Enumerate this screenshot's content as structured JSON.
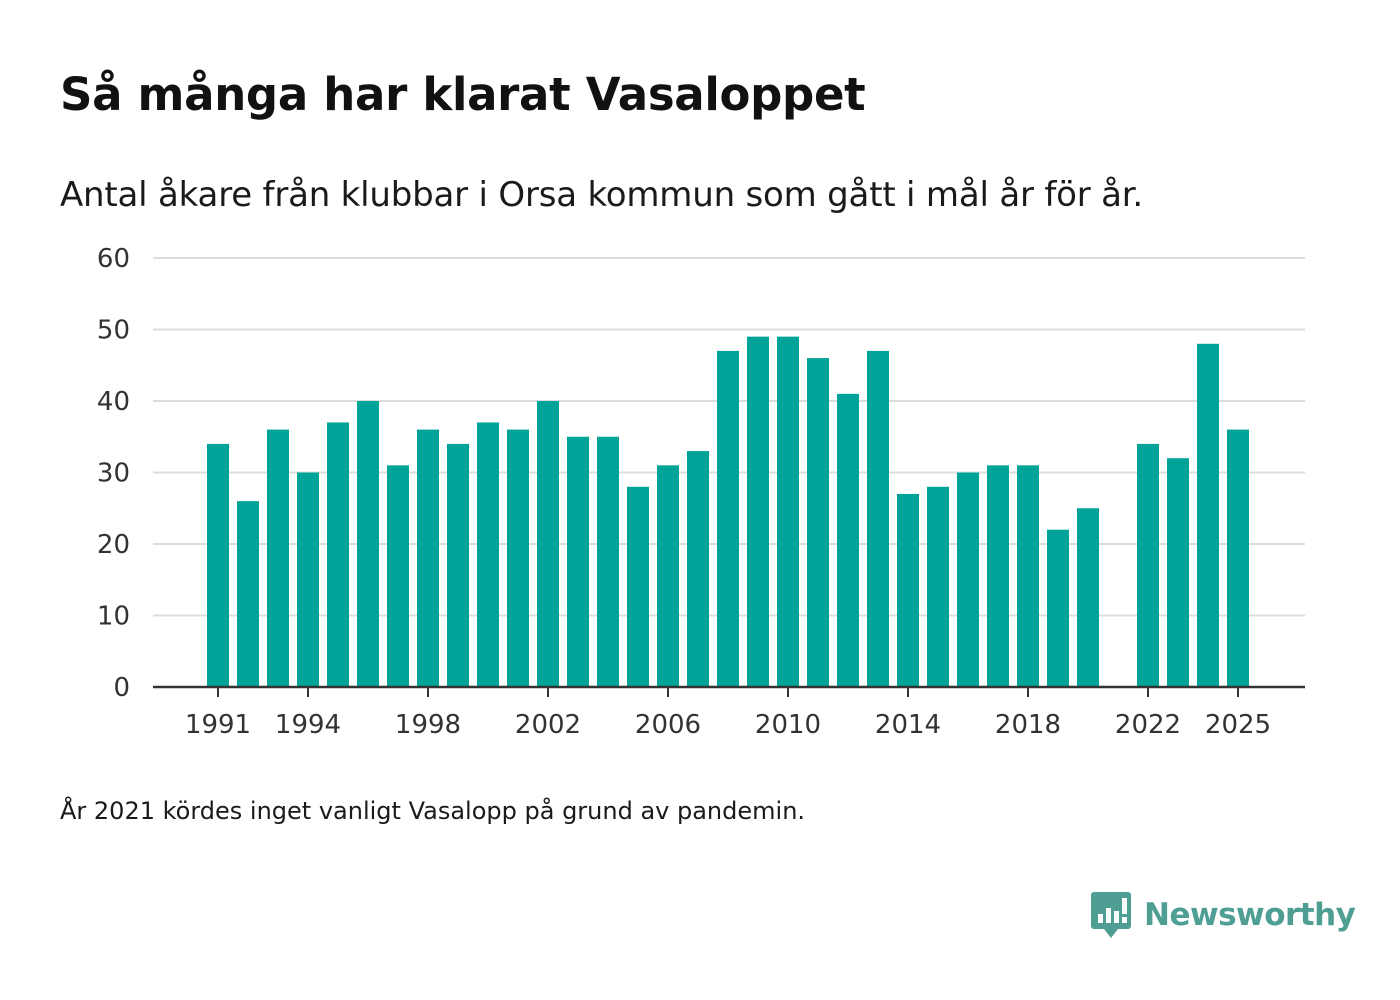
{
  "title": "Så många har klarat Vasaloppet",
  "subtitle": "Antal åkare från klubbar i Orsa kommun som gått i mål år för år.",
  "note": "År 2021 kördes inget vanligt Vasalopp på grund av pandemin.",
  "brand": {
    "name": "Newsworthy",
    "icon": "newsworthy-logo-icon",
    "color": "#4e9e93"
  },
  "colors": {
    "bar": "#00a398",
    "grid": "#dddddd",
    "axis": "#333333"
  },
  "chart_data": {
    "type": "bar",
    "title": "Så många har klarat Vasaloppet",
    "xlabel": "",
    "ylabel": "",
    "ylim": [
      0,
      60
    ],
    "yticks": [
      0,
      10,
      20,
      30,
      40,
      50,
      60
    ],
    "xticks": [
      1991,
      1994,
      1998,
      2002,
      2006,
      2010,
      2014,
      2018,
      2022,
      2025
    ],
    "grid": true,
    "categories": [
      1991,
      1992,
      1993,
      1994,
      1995,
      1996,
      1997,
      1998,
      1999,
      2000,
      2001,
      2002,
      2003,
      2004,
      2005,
      2006,
      2007,
      2008,
      2009,
      2010,
      2011,
      2012,
      2013,
      2014,
      2015,
      2016,
      2017,
      2018,
      2019,
      2020,
      2021,
      2022,
      2023,
      2024,
      2025
    ],
    "values": [
      34,
      26,
      36,
      30,
      37,
      40,
      31,
      36,
      34,
      37,
      36,
      40,
      35,
      35,
      28,
      31,
      33,
      47,
      49,
      49,
      46,
      41,
      47,
      27,
      28,
      30,
      31,
      31,
      22,
      25,
      null,
      34,
      32,
      48,
      36
    ]
  }
}
